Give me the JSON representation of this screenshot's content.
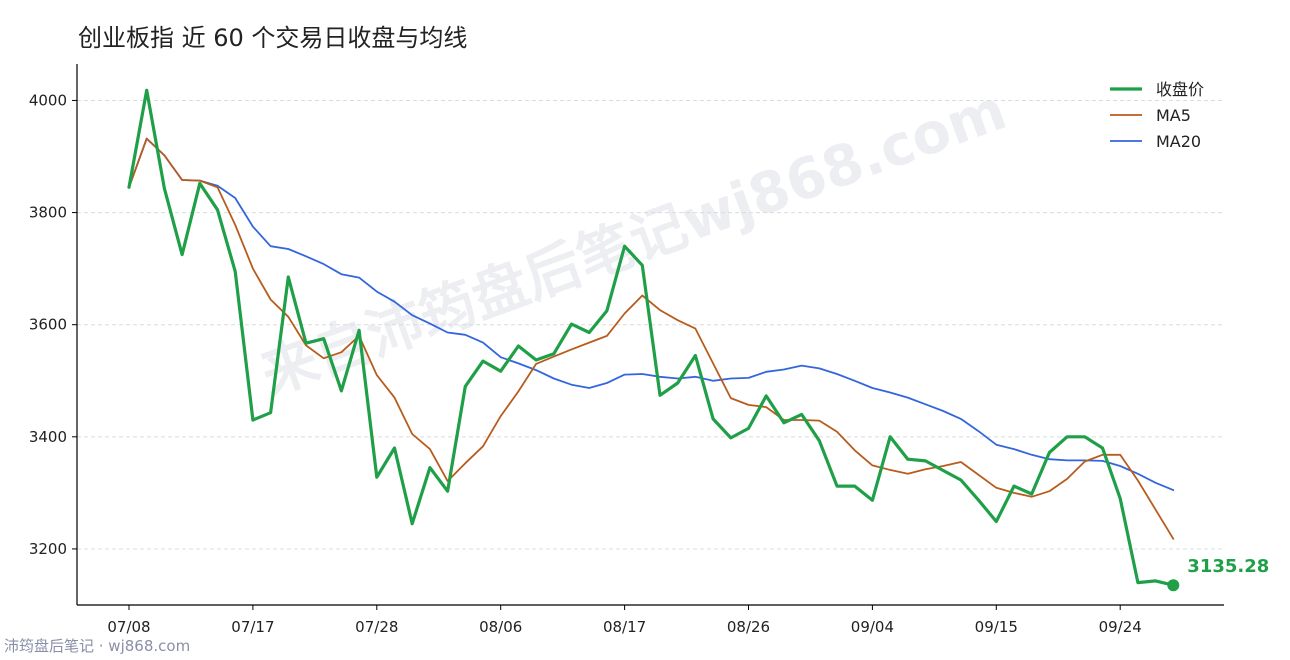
{
  "chart_data": {
    "type": "line",
    "title": "创业板指 近 60 个交易日收盘与均线",
    "xlabel": "",
    "ylabel": "",
    "ylim": [
      3100,
      4065
    ],
    "yticks": [
      3200,
      3400,
      3600,
      3800,
      4000
    ],
    "x_tick_labels": [
      "07/08",
      "07/17",
      "07/28",
      "08/06",
      "08/17",
      "08/26",
      "09/04",
      "09/15",
      "09/24"
    ],
    "x_tick_indices": [
      0,
      7,
      14,
      21,
      28,
      35,
      42,
      49,
      56
    ],
    "grid": "horizontal dashed",
    "legend_position": "top-right",
    "series": [
      {
        "name": "收盘价",
        "color": "#1fa048",
        "values": [
          3845,
          4018,
          3843,
          3725,
          3852,
          3805,
          3695,
          3430,
          3443,
          3685,
          3567,
          3575,
          3482,
          3590,
          3328,
          3380,
          3245,
          3345,
          3303,
          3490,
          3535,
          3517,
          3562,
          3537,
          3548,
          3601,
          3586,
          3625,
          3740,
          3706,
          3474,
          3496,
          3545,
          3432,
          3398,
          3415,
          3473,
          3425,
          3440,
          3393,
          3312,
          3312,
          3287,
          3400,
          3360,
          3357,
          3340,
          3323,
          3287,
          3249,
          3312,
          3298,
          3372,
          3400,
          3400,
          3380,
          3290,
          3140,
          3143,
          3135.28
        ]
      },
      {
        "name": "MA5",
        "color": "#b85c1e",
        "values": [
          3845,
          3932,
          3902,
          3858,
          3857,
          3845,
          3778,
          3700,
          3645,
          3614,
          3563,
          3540,
          3551,
          3580,
          3510,
          3470,
          3405,
          3378,
          3321,
          3353,
          3383,
          3437,
          3481,
          3530,
          3543,
          3556,
          3568,
          3580,
          3620,
          3652,
          3626,
          3608,
          3593,
          3531,
          3469,
          3457,
          3453,
          3430,
          3430,
          3429,
          3409,
          3376,
          3349,
          3341,
          3334,
          3342,
          3348,
          3355,
          3332,
          3309,
          3300,
          3293,
          3303,
          3325,
          3356,
          3368,
          3368,
          3322,
          3270,
          3218
        ]
      },
      {
        "name": "MA20",
        "color": "#3366dd",
        "values": [
          3845,
          3932,
          3902,
          3858,
          3857,
          3848,
          3826,
          3775,
          3740,
          3735,
          3722,
          3708,
          3690,
          3684,
          3659,
          3641,
          3617,
          3602,
          3586,
          3582,
          3568,
          3542,
          3531,
          3519,
          3504,
          3493,
          3487,
          3496,
          3511,
          3512,
          3507,
          3504,
          3507,
          3500,
          3504,
          3505,
          3516,
          3520,
          3527,
          3522,
          3512,
          3500,
          3487,
          3479,
          3470,
          3458,
          3446,
          3432,
          3410,
          3386,
          3378,
          3368,
          3360,
          3358,
          3358,
          3357,
          3348,
          3334,
          3318,
          3305
        ]
      }
    ],
    "last_value_label": "3135.28"
  },
  "watermark": {
    "center_text": "来自沛筠盘后笔记wj868.com",
    "footer_text": "沛筠盘后笔记 · wj868.com"
  }
}
